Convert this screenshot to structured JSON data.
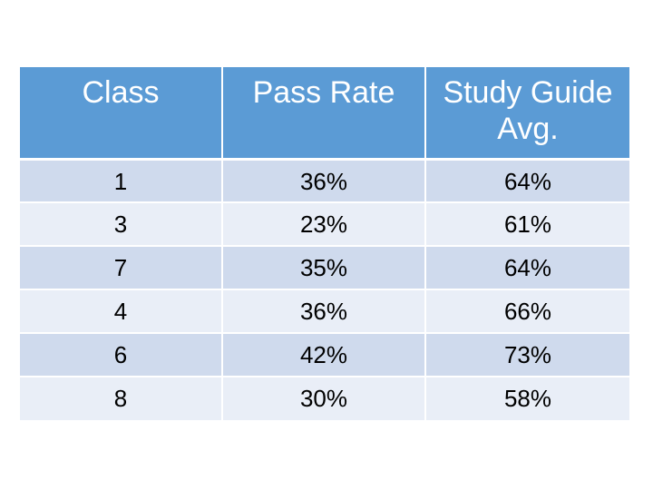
{
  "table": {
    "headers": [
      "Class",
      "Pass Rate",
      "Study Guide Avg."
    ],
    "rows": [
      [
        "1",
        "36%",
        "64%"
      ],
      [
        "3",
        "23%",
        "61%"
      ],
      [
        "7",
        "35%",
        "64%"
      ],
      [
        "4",
        "36%",
        "66%"
      ],
      [
        "6",
        "42%",
        "73%"
      ],
      [
        "8",
        "30%",
        "58%"
      ]
    ],
    "colors": {
      "header_bg": "#5b9bd5",
      "header_text": "#ffffff",
      "row_odd_bg": "#cfdaed",
      "row_even_bg": "#e9eef7"
    }
  }
}
